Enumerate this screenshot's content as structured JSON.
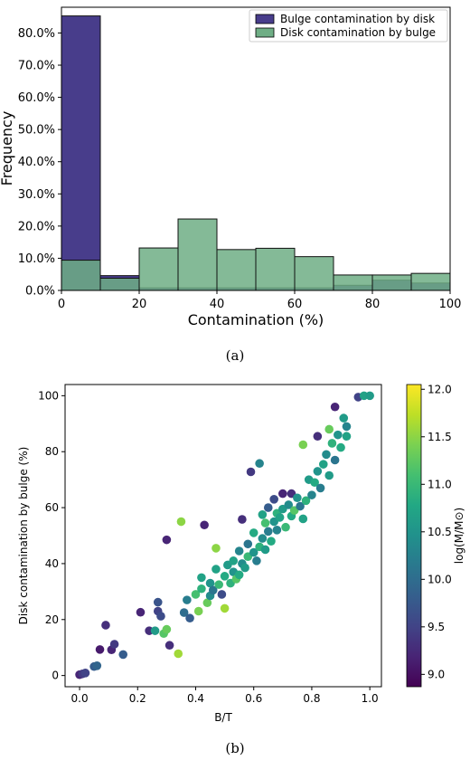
{
  "chart_data": [
    {
      "type": "bar",
      "panel_caption": "(a)",
      "xlabel": "Contamination (%)",
      "ylabel": "Frequency",
      "xlim": [
        0,
        100
      ],
      "ylim": [
        0,
        88
      ],
      "xticks": [
        0,
        20,
        40,
        60,
        80,
        100
      ],
      "yticks": [
        "0.0%",
        "10.0%",
        "20.0%",
        "30.0%",
        "40.0%",
        "50.0%",
        "60.0%",
        "70.0%",
        "80.0%"
      ],
      "bin_edges": [
        0,
        10,
        20,
        30,
        40,
        50,
        60,
        70,
        80,
        90,
        100
      ],
      "legend_position": "top-right",
      "series": [
        {
          "name": "Bulge contamination by disk",
          "color": "#483d8b",
          "values": [
            85.3,
            4.6,
            0.8,
            0.8,
            0.8,
            0.8,
            0.8,
            1.6,
            3.2,
            2.3
          ]
        },
        {
          "name": "Disk contamination by bulge",
          "color": "#6fae85",
          "values": [
            9.4,
            3.8,
            13.2,
            22.2,
            12.7,
            13.1,
            10.5,
            4.8,
            4.8,
            5.3
          ]
        }
      ]
    },
    {
      "type": "scatter",
      "panel_caption": "(b)",
      "xlabel": "B/T",
      "ylabel": "Disk contamination by bulge (%)",
      "xlim": [
        -0.05,
        1.04
      ],
      "ylim": [
        -4,
        104
      ],
      "xticks": [
        "0.0",
        "0.2",
        "0.4",
        "0.6",
        "0.8",
        "1.0"
      ],
      "yticks": [
        "0",
        "20",
        "40",
        "60",
        "80",
        "100"
      ],
      "colorbar": {
        "label": "log(M/M⊙)",
        "range": [
          8.87,
          12.05
        ],
        "ticks": [
          "9.0",
          "9.5",
          "10.0",
          "10.5",
          "11.0",
          "11.5",
          "12.0"
        ],
        "colormap": "viridis"
      },
      "points": [
        [
          0.0,
          0.3,
          9.2
        ],
        [
          0.01,
          0.6,
          9.4
        ],
        [
          0.02,
          0.9,
          9.5
        ],
        [
          0.05,
          3.2,
          9.8
        ],
        [
          0.06,
          3.5,
          9.9
        ],
        [
          0.07,
          9.3,
          9.1
        ],
        [
          0.09,
          18.0,
          9.3
        ],
        [
          0.11,
          9.2,
          9.2
        ],
        [
          0.12,
          11.2,
          9.4
        ],
        [
          0.15,
          7.5,
          9.8
        ],
        [
          0.21,
          22.6,
          9.2
        ],
        [
          0.24,
          16.0,
          9.3
        ],
        [
          0.26,
          16.0,
          10.6
        ],
        [
          0.27,
          26.2,
          9.7
        ],
        [
          0.27,
          23.0,
          9.5
        ],
        [
          0.28,
          21.2,
          9.6
        ],
        [
          0.29,
          15.0,
          11.2
        ],
        [
          0.3,
          16.5,
          11.3
        ],
        [
          0.3,
          48.5,
          9.2
        ],
        [
          0.31,
          10.8,
          9.3
        ],
        [
          0.34,
          7.8,
          11.6
        ],
        [
          0.35,
          55.0,
          11.5
        ],
        [
          0.36,
          22.5,
          10.0
        ],
        [
          0.37,
          27.0,
          10.2
        ],
        [
          0.38,
          20.5,
          9.8
        ],
        [
          0.4,
          29.0,
          11.1
        ],
        [
          0.41,
          23.0,
          11.4
        ],
        [
          0.42,
          35.0,
          10.7
        ],
        [
          0.42,
          31.0,
          10.9
        ],
        [
          0.43,
          53.8,
          9.2
        ],
        [
          0.44,
          26.0,
          11.3
        ],
        [
          0.45,
          33.0,
          10.5
        ],
        [
          0.45,
          28.5,
          10.4
        ],
        [
          0.46,
          30.5,
          10.1
        ],
        [
          0.47,
          45.5,
          11.5
        ],
        [
          0.47,
          38.0,
          10.7
        ],
        [
          0.48,
          32.5,
          11.0
        ],
        [
          0.49,
          29.0,
          9.6
        ],
        [
          0.5,
          35.5,
          10.8
        ],
        [
          0.5,
          24.0,
          11.6
        ],
        [
          0.51,
          39.5,
          10.6
        ],
        [
          0.52,
          33.0,
          10.9
        ],
        [
          0.53,
          37.0,
          10.5
        ],
        [
          0.53,
          41.0,
          10.7
        ],
        [
          0.54,
          34.5,
          11.2
        ],
        [
          0.55,
          44.5,
          10.3
        ],
        [
          0.55,
          36.0,
          10.8
        ],
        [
          0.56,
          40.0,
          10.4
        ],
        [
          0.56,
          55.8,
          9.3
        ],
        [
          0.57,
          38.5,
          10.6
        ],
        [
          0.58,
          47.0,
          10.1
        ],
        [
          0.58,
          42.5,
          11.0
        ],
        [
          0.59,
          72.8,
          9.4
        ],
        [
          0.6,
          44.0,
          10.5
        ],
        [
          0.6,
          51.0,
          10.8
        ],
        [
          0.61,
          41.0,
          10.2
        ],
        [
          0.62,
          46.0,
          10.9
        ],
        [
          0.62,
          75.8,
          10.3
        ],
        [
          0.63,
          57.5,
          10.7
        ],
        [
          0.63,
          49.0,
          10.4
        ],
        [
          0.64,
          54.5,
          11.1
        ],
        [
          0.64,
          45.0,
          10.6
        ],
        [
          0.65,
          60.0,
          9.8
        ],
        [
          0.65,
          51.5,
          10.2
        ],
        [
          0.66,
          48.0,
          10.8
        ],
        [
          0.67,
          55.0,
          10.5
        ],
        [
          0.67,
          63.0,
          9.6
        ],
        [
          0.68,
          58.0,
          10.9
        ],
        [
          0.68,
          52.0,
          10.3
        ],
        [
          0.69,
          56.5,
          10.7
        ],
        [
          0.7,
          65.0,
          9.2
        ],
        [
          0.7,
          59.5,
          10.6
        ],
        [
          0.71,
          53.0,
          11.0
        ],
        [
          0.72,
          61.0,
          10.4
        ],
        [
          0.73,
          57.0,
          10.8
        ],
        [
          0.73,
          65.0,
          9.3
        ],
        [
          0.74,
          59.0,
          11.2
        ],
        [
          0.75,
          63.5,
          10.5
        ],
        [
          0.76,
          60.5,
          10.1
        ],
        [
          0.77,
          56.0,
          10.7
        ],
        [
          0.77,
          82.5,
          11.4
        ],
        [
          0.78,
          62.5,
          10.9
        ],
        [
          0.79,
          70.0,
          10.6
        ],
        [
          0.8,
          64.5,
          10.3
        ],
        [
          0.81,
          69.0,
          10.8
        ],
        [
          0.82,
          73.0,
          10.5
        ],
        [
          0.82,
          85.5,
          9.3
        ],
        [
          0.83,
          67.0,
          10.2
        ],
        [
          0.84,
          75.5,
          10.7
        ],
        [
          0.85,
          79.0,
          10.4
        ],
        [
          0.86,
          88.0,
          11.3
        ],
        [
          0.86,
          71.5,
          10.6
        ],
        [
          0.87,
          83.0,
          10.9
        ],
        [
          0.88,
          96.0,
          9.2
        ],
        [
          0.88,
          77.0,
          10.1
        ],
        [
          0.89,
          86.0,
          10.5
        ],
        [
          0.9,
          81.5,
          10.8
        ],
        [
          0.91,
          92.0,
          10.6
        ],
        [
          0.92,
          89.0,
          10.3
        ],
        [
          0.92,
          85.5,
          10.7
        ],
        [
          0.96,
          99.5,
          9.5
        ],
        [
          0.98,
          100.0,
          10.7
        ],
        [
          1.0,
          100.0,
          10.6
        ]
      ]
    }
  ]
}
